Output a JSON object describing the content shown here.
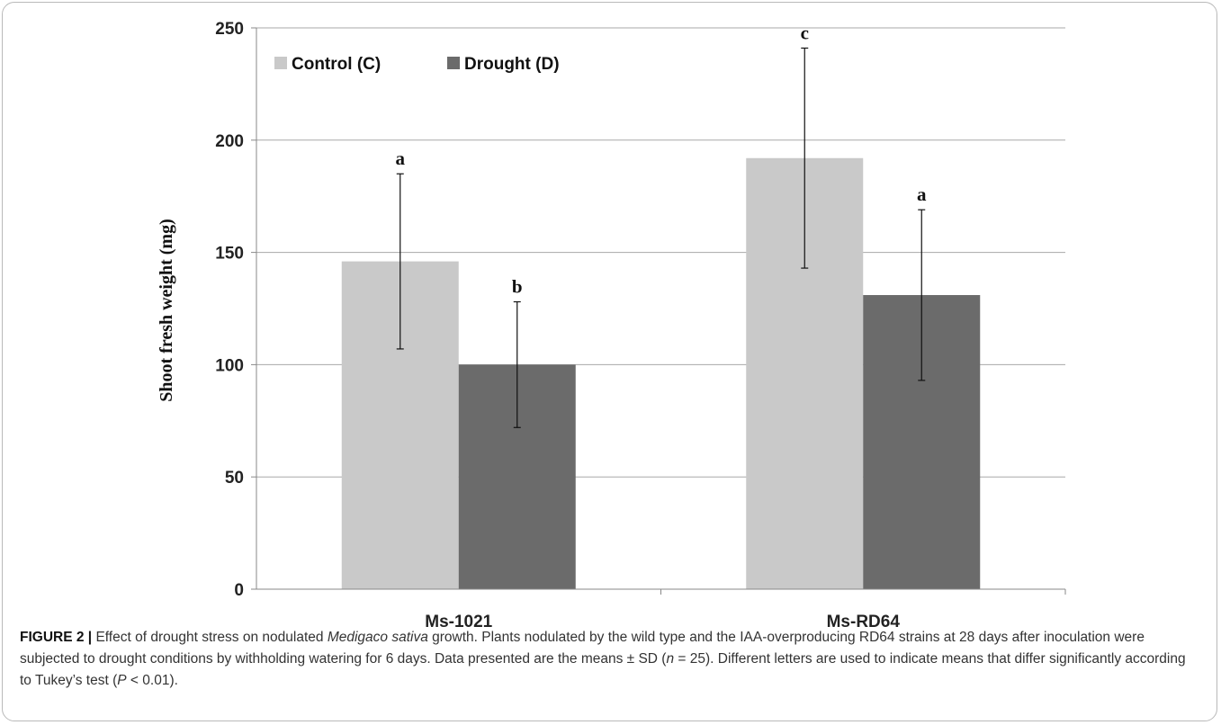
{
  "chart_data": {
    "type": "bar",
    "categories": [
      "Ms-1021",
      "Ms-RD64"
    ],
    "series": [
      {
        "name": "Control (C)",
        "values": [
          146,
          192
        ],
        "sd": [
          39,
          49
        ],
        "letters": [
          "a",
          "c"
        ],
        "color": "#c9c9c9"
      },
      {
        "name": "Drought (D)",
        "values": [
          100,
          131
        ],
        "sd": [
          28,
          38
        ],
        "letters": [
          "b",
          "a"
        ],
        "color": "#6b6b6b"
      }
    ],
    "title": "",
    "xlabel": "",
    "ylabel": "Shoot fresh weight (mg)",
    "ylim": [
      0,
      250
    ],
    "yticks": [
      0,
      50,
      100,
      150,
      200,
      250
    ],
    "grid": true,
    "legend_position": "top-left"
  },
  "caption": {
    "label": "FIGURE 2 |",
    "text_1": " Effect of drought stress on nodulated ",
    "species": "Medigaco sativa",
    "text_2": " growth. Plants nodulated by the wild type and the IAA-overproducing RD64 strains at 28 days after inoculation were subjected to drought conditions by withholding watering for 6 days. Data presented are the means ± SD (",
    "n_var": "n",
    "text_3": " = 25). Different letters are used to indicate means that differ significantly according to Tukey’s test (",
    "p_var": "P",
    "text_4": " < 0.01)."
  }
}
